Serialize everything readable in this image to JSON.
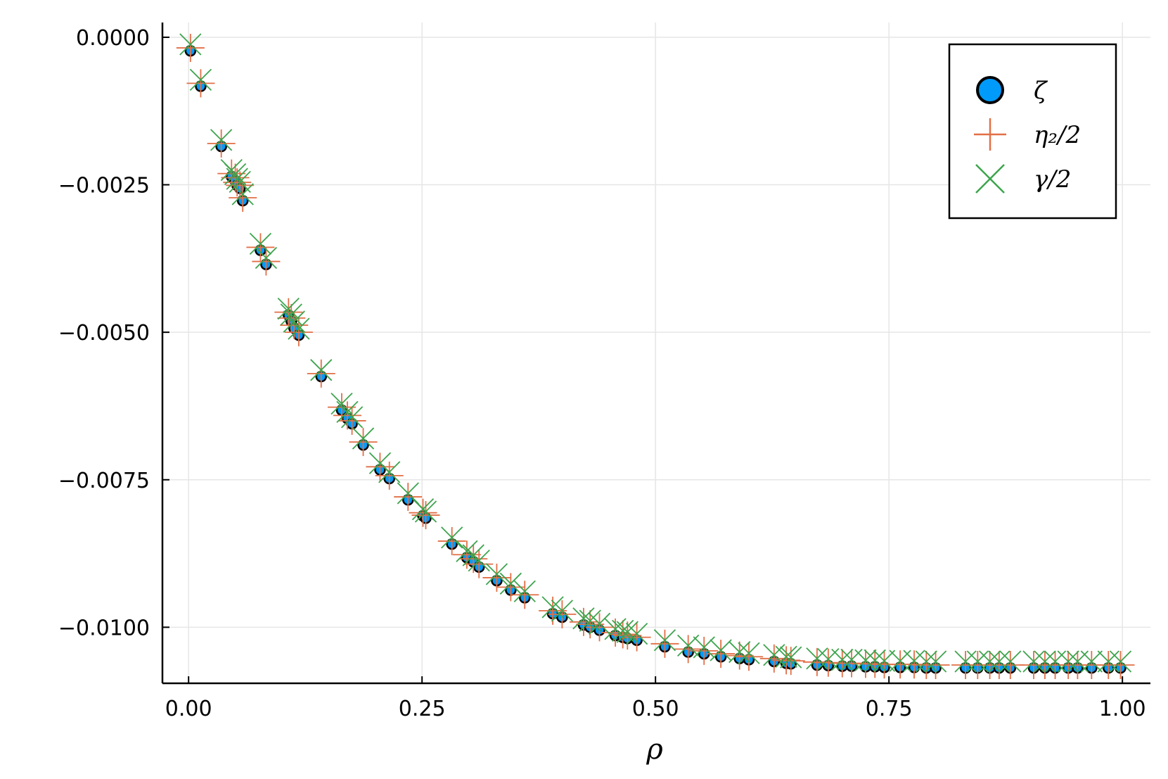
{
  "chart_data": {
    "type": "scatter",
    "title": "",
    "xlabel": "ρ",
    "ylabel": "",
    "xlim": [
      -0.028,
      1.03
    ],
    "ylim": [
      -0.01095,
      0.00025
    ],
    "grid": true,
    "legend_position": "top-right",
    "x_ticks": [
      0.0,
      0.25,
      0.5,
      0.75,
      1.0
    ],
    "x_tick_labels": [
      "0.00",
      "0.25",
      "0.50",
      "0.75",
      "1.00"
    ],
    "y_ticks": [
      0.0,
      -0.0025,
      -0.005,
      -0.0075,
      -0.01
    ],
    "y_tick_labels": [
      "0.0000",
      "−0.0025",
      "−0.0050",
      "−0.0075",
      "−0.0100"
    ],
    "x": [
      0.002,
      0.013,
      0.035,
      0.046,
      0.05,
      0.052,
      0.055,
      0.058,
      0.077,
      0.083,
      0.107,
      0.11,
      0.113,
      0.118,
      0.142,
      0.164,
      0.17,
      0.175,
      0.187,
      0.205,
      0.215,
      0.235,
      0.251,
      0.254,
      0.282,
      0.298,
      0.305,
      0.311,
      0.33,
      0.345,
      0.36,
      0.39,
      0.4,
      0.423,
      0.43,
      0.44,
      0.457,
      0.465,
      0.47,
      0.48,
      0.51,
      0.535,
      0.552,
      0.57,
      0.59,
      0.6,
      0.627,
      0.64,
      0.645,
      0.673,
      0.685,
      0.7,
      0.71,
      0.725,
      0.735,
      0.745,
      0.762,
      0.777,
      0.79,
      0.8,
      0.832,
      0.845,
      0.858,
      0.868,
      0.88,
      0.905,
      0.917,
      0.928,
      0.942,
      0.952,
      0.967,
      0.985,
      0.998
    ],
    "series": [
      {
        "name": "ζ",
        "color": "#009AFA",
        "marker": "circle",
        "values": [
          -0.00023,
          -0.00083,
          -0.00185,
          -0.00236,
          -0.00243,
          -0.00251,
          -0.00256,
          -0.00277,
          -0.00361,
          -0.00385,
          -0.00471,
          -0.00481,
          -0.00493,
          -0.00505,
          -0.00575,
          -0.00632,
          -0.00646,
          -0.00655,
          -0.00691,
          -0.00733,
          -0.00748,
          -0.00784,
          -0.00811,
          -0.00815,
          -0.00859,
          -0.00882,
          -0.00889,
          -0.00898,
          -0.00921,
          -0.00937,
          -0.0095,
          -0.00977,
          -0.00983,
          -0.00996,
          -0.01,
          -0.01005,
          -0.01014,
          -0.01017,
          -0.01019,
          -0.01022,
          -0.01033,
          -0.01042,
          -0.01045,
          -0.0105,
          -0.01053,
          -0.01055,
          -0.01058,
          -0.01061,
          -0.01062,
          -0.01064,
          -0.01065,
          -0.01066,
          -0.01066,
          -0.01067,
          -0.01067,
          -0.01068,
          -0.01068,
          -0.01068,
          -0.01069,
          -0.01069,
          -0.01069,
          -0.01069,
          -0.01069,
          -0.01069,
          -0.01069,
          -0.01069,
          -0.01069,
          -0.01069,
          -0.01069,
          -0.01069,
          -0.01069,
          -0.01069,
          -0.01069
        ]
      },
      {
        "name": "η₂/2",
        "color": "#E26F46",
        "marker": "plus",
        "values": [
          -0.00018,
          -0.00078,
          -0.0018,
          -0.00231,
          -0.00238,
          -0.00246,
          -0.00251,
          -0.00272,
          -0.00356,
          -0.0038,
          -0.00466,
          -0.00476,
          -0.00488,
          -0.005,
          -0.0057,
          -0.00627,
          -0.00641,
          -0.0065,
          -0.00686,
          -0.00728,
          -0.00743,
          -0.00779,
          -0.00806,
          -0.0081,
          -0.00854,
          -0.00877,
          -0.00884,
          -0.00893,
          -0.00916,
          -0.00932,
          -0.00945,
          -0.00972,
          -0.00978,
          -0.00991,
          -0.00995,
          -0.01,
          -0.01009,
          -0.01012,
          -0.01014,
          -0.01017,
          -0.01028,
          -0.01037,
          -0.0104,
          -0.01045,
          -0.01048,
          -0.0105,
          -0.01053,
          -0.01056,
          -0.01057,
          -0.01059,
          -0.0106,
          -0.01061,
          -0.01061,
          -0.01062,
          -0.01062,
          -0.01063,
          -0.01063,
          -0.01063,
          -0.01064,
          -0.01064,
          -0.01064,
          -0.01064,
          -0.01064,
          -0.01064,
          -0.01064,
          -0.01064,
          -0.01064,
          -0.01064,
          -0.01064,
          -0.01064,
          -0.01064,
          -0.01064,
          -0.01064
        ]
      },
      {
        "name": "γ/2",
        "color": "#3DA44D",
        "marker": "cross",
        "values": [
          -0.00012,
          -0.00072,
          -0.00174,
          -0.00225,
          -0.00232,
          -0.0024,
          -0.00245,
          -0.00266,
          -0.0035,
          -0.00374,
          -0.0046,
          -0.0047,
          -0.00482,
          -0.00494,
          -0.00564,
          -0.00621,
          -0.00635,
          -0.00644,
          -0.0068,
          -0.00722,
          -0.00737,
          -0.00773,
          -0.008,
          -0.00804,
          -0.00848,
          -0.00871,
          -0.00878,
          -0.00887,
          -0.0091,
          -0.00926,
          -0.00939,
          -0.00966,
          -0.00972,
          -0.00985,
          -0.00989,
          -0.00994,
          -0.01003,
          -0.01006,
          -0.01008,
          -0.01011,
          -0.01022,
          -0.01031,
          -0.01034,
          -0.01039,
          -0.01042,
          -0.01044,
          -0.01047,
          -0.0105,
          -0.01051,
          -0.01053,
          -0.01054,
          -0.01055,
          -0.01055,
          -0.01056,
          -0.01056,
          -0.01057,
          -0.01057,
          -0.01057,
          -0.01058,
          -0.01058,
          -0.01058,
          -0.01058,
          -0.01058,
          -0.01058,
          -0.01058,
          -0.01058,
          -0.01058,
          -0.01058,
          -0.01058,
          -0.01058,
          -0.01058,
          -0.01058,
          -0.01058
        ]
      }
    ]
  },
  "legend": {
    "items": [
      {
        "label": "ζ",
        "color": "#009AFA",
        "marker": "circle"
      },
      {
        "label": "η₂/2",
        "color": "#E26F46",
        "marker": "plus"
      },
      {
        "label": "γ/2",
        "color": "#3DA44D",
        "marker": "cross"
      }
    ]
  }
}
